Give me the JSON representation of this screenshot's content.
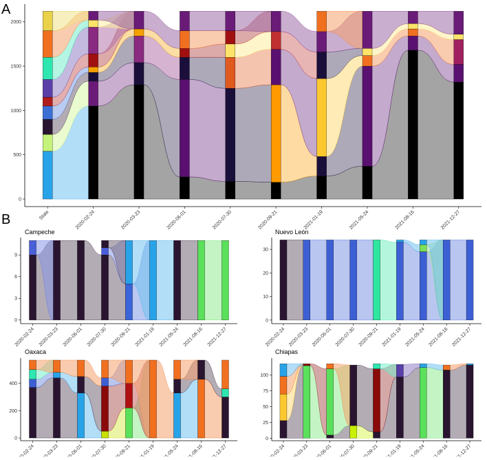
{
  "chart_data": [
    {
      "type": "alluvial",
      "panel_label": "A",
      "categories": [
        "State",
        "2020-02-24",
        "2020-03-23",
        "2020-06-01",
        "2020-07-30",
        "2020-09-21",
        "2021-01-19",
        "2021-05-24",
        "2021-08-16",
        "2021-12-27"
      ],
      "ylim": [
        -85,
        2200
      ],
      "yticks": [
        0,
        500,
        1000,
        1500,
        2000
      ],
      "stacks": [
        [
          {
            "value": 540,
            "color": "#29a3e8"
          },
          {
            "value": 190,
            "color": "#c5f27a"
          },
          {
            "value": 170,
            "color": "#2a1530"
          },
          {
            "value": 150,
            "color": "#3c6fd4"
          },
          {
            "value": 100,
            "color": "#b11b1b"
          },
          {
            "value": 200,
            "color": "#5a3fa8"
          },
          {
            "value": 250,
            "color": "#2ee6b0"
          },
          {
            "value": 300,
            "color": "#f07020"
          },
          {
            "value": 220,
            "color": "#e9d24a"
          }
        ],
        [
          {
            "value": 1050,
            "color": "#000000"
          },
          {
            "value": 280,
            "color": "#6a1b78"
          },
          {
            "value": 100,
            "color": "#1a0f3a"
          },
          {
            "value": 60,
            "color": "#f5a000"
          },
          {
            "value": 150,
            "color": "#a01010"
          },
          {
            "value": 300,
            "color": "#8a2a80"
          },
          {
            "value": 80,
            "color": "#fce36a"
          },
          {
            "value": 100,
            "color": "#6a1b78"
          }
        ],
        [
          {
            "value": 1290,
            "color": "#000000"
          },
          {
            "value": 250,
            "color": "#1a0f3a"
          },
          {
            "value": 300,
            "color": "#8a2a80"
          },
          {
            "value": 80,
            "color": "#f5a000"
          },
          {
            "value": 200,
            "color": "#6a1b78"
          }
        ],
        [
          {
            "value": 250,
            "color": "#000000"
          },
          {
            "value": 1100,
            "color": "#5a1070"
          },
          {
            "value": 250,
            "color": "#1a0f3a"
          },
          {
            "value": 100,
            "color": "#a01010"
          },
          {
            "value": 200,
            "color": "#f07020"
          },
          {
            "value": 220,
            "color": "#6a1b78"
          }
        ],
        [
          {
            "value": 200,
            "color": "#000000"
          },
          {
            "value": 1050,
            "color": "#1a0f3a"
          },
          {
            "value": 350,
            "color": "#e05a20"
          },
          {
            "value": 150,
            "color": "#fce36a"
          },
          {
            "value": 150,
            "color": "#a01010"
          },
          {
            "value": 220,
            "color": "#6a1b78"
          }
        ],
        [
          {
            "value": 190,
            "color": "#000000"
          },
          {
            "value": 1100,
            "color": "#ff9a00"
          },
          {
            "value": 400,
            "color": "#5a1070"
          },
          {
            "value": 200,
            "color": "#c03030"
          },
          {
            "value": 230,
            "color": "#6a1b78"
          }
        ],
        [
          {
            "value": 260,
            "color": "#000000"
          },
          {
            "value": 220,
            "color": "#1a0f3a"
          },
          {
            "value": 880,
            "color": "#fcc830"
          },
          {
            "value": 300,
            "color": "#1a0f3a"
          },
          {
            "value": 230,
            "color": "#6a1b78"
          },
          {
            "value": 230,
            "color": "#f07020"
          }
        ],
        [
          {
            "value": 370,
            "color": "#000000"
          },
          {
            "value": 1130,
            "color": "#5a1070"
          },
          {
            "value": 120,
            "color": "#f07020"
          },
          {
            "value": 80,
            "color": "#fce36a"
          },
          {
            "value": 420,
            "color": "#6a1b78"
          }
        ],
        [
          {
            "value": 1680,
            "color": "#000000"
          },
          {
            "value": 160,
            "color": "#5a1070"
          },
          {
            "value": 80,
            "color": "#f07020"
          },
          {
            "value": 60,
            "color": "#fce36a"
          },
          {
            "value": 140,
            "color": "#6a1b78"
          }
        ],
        [
          {
            "value": 1320,
            "color": "#000000"
          },
          {
            "value": 200,
            "color": "#5a1070"
          },
          {
            "value": 280,
            "color": "#a02060"
          },
          {
            "value": 60,
            "color": "#fce36a"
          },
          {
            "value": 260,
            "color": "#6a1b78"
          }
        ]
      ]
    },
    {
      "type": "alluvial",
      "panel_label": "B",
      "title": "Campeche",
      "categories": [
        "2020-02-24",
        "2020-03-23",
        "2020-06-01",
        "2020-07-30",
        "2020-09-21",
        "2021-01-19",
        "2021-05-24",
        "2021-08-16",
        "2021-12-27"
      ],
      "ylim": [
        -0.5,
        11.4
      ],
      "yticks": [
        0,
        3,
        6,
        9
      ],
      "stacks": [
        [
          {
            "value": 9,
            "color": "#2a1530"
          },
          {
            "value": 2,
            "color": "#4a5fd8"
          }
        ],
        [
          {
            "value": 11,
            "color": "#2a1530"
          }
        ],
        [
          {
            "value": 11,
            "color": "#2a1530"
          }
        ],
        [
          {
            "value": 9,
            "color": "#2a1530"
          },
          {
            "value": 1,
            "color": "#4a5fd8"
          },
          {
            "value": 1,
            "color": "#2a1530"
          }
        ],
        [
          {
            "value": 5,
            "color": "#3a64d8"
          },
          {
            "value": 6,
            "color": "#29a3e8"
          }
        ],
        [
          {
            "value": 11,
            "color": "#29a3e8"
          }
        ],
        [
          {
            "value": 11,
            "color": "#2a1530"
          }
        ],
        [
          {
            "value": 11,
            "color": "#5be05b"
          }
        ],
        [
          {
            "value": 11,
            "color": "#5be05b"
          }
        ]
      ]
    },
    {
      "type": "alluvial",
      "title": "Nuevo León",
      "categories": [
        "2020-02-24",
        "2020-03-23",
        "2020-06-01",
        "2020-07-30",
        "2020-09-21",
        "2021-01-19",
        "2021-05-24",
        "2021-08-16",
        "2021-12-27"
      ],
      "ylim": [
        -1.5,
        35
      ],
      "yticks": [
        0,
        10,
        20,
        30
      ],
      "stacks": [
        [
          {
            "value": 34,
            "color": "#2a1530"
          }
        ],
        [
          {
            "value": 34,
            "color": "#3c5fd4"
          }
        ],
        [
          {
            "value": 34,
            "color": "#3c5fd4"
          }
        ],
        [
          {
            "value": 34,
            "color": "#3c5fd4"
          }
        ],
        [
          {
            "value": 34,
            "color": "#2ee6a0"
          }
        ],
        [
          {
            "value": 33,
            "color": "#3c5fd4"
          },
          {
            "value": 1,
            "color": "#29a3e8"
          }
        ],
        [
          {
            "value": 29,
            "color": "#3c5fd4"
          },
          {
            "value": 3,
            "color": "#7be05b"
          },
          {
            "value": 2,
            "color": "#29a3e8"
          }
        ],
        [
          {
            "value": 34,
            "color": "#3c5fd4"
          }
        ],
        [
          {
            "value": 34,
            "color": "#3c5fd4"
          }
        ]
      ]
    },
    {
      "type": "alluvial",
      "title": "Oaxaca",
      "categories": [
        "2020-02-24",
        "2020-03-23",
        "2020-06-01",
        "2020-07-30",
        "2020-09-21",
        "2021-01-19",
        "2021-05-24",
        "2021-08-16",
        "2021-12-27"
      ],
      "ylim": [
        -20,
        585
      ],
      "yticks": [
        0,
        200,
        400
      ],
      "stacks": [
        [
          {
            "value": 370,
            "color": "#2a1530"
          },
          {
            "value": 60,
            "color": "#3c5fd4"
          },
          {
            "value": 70,
            "color": "#2ee6b0"
          },
          {
            "value": 70,
            "color": "#f07020"
          }
        ],
        [
          {
            "value": 440,
            "color": "#2a1530"
          },
          {
            "value": 40,
            "color": "#29a3e8"
          },
          {
            "value": 90,
            "color": "#f07020"
          }
        ],
        [
          {
            "value": 330,
            "color": "#29a3e8"
          },
          {
            "value": 120,
            "color": "#2a1530"
          },
          {
            "value": 120,
            "color": "#f07020"
          }
        ],
        [
          {
            "value": 50,
            "color": "#c8e000"
          },
          {
            "value": 330,
            "color": "#8a0a0a"
          },
          {
            "value": 60,
            "color": "#3c5fd4"
          },
          {
            "value": 130,
            "color": "#f07020"
          }
        ],
        [
          {
            "value": 220,
            "color": "#5be05b"
          },
          {
            "value": 180,
            "color": "#b01010"
          },
          {
            "value": 170,
            "color": "#f07020"
          }
        ],
        [
          {
            "value": 570,
            "color": "#f07020"
          }
        ],
        [
          {
            "value": 330,
            "color": "#29a3e8"
          },
          {
            "value": 100,
            "color": "#2a1530"
          },
          {
            "value": 140,
            "color": "#f07020"
          }
        ],
        [
          {
            "value": 430,
            "color": "#f07020"
          },
          {
            "value": 140,
            "color": "#2a1530"
          }
        ],
        [
          {
            "value": 300,
            "color": "#2a1530"
          },
          {
            "value": 60,
            "color": "#2ee6b0"
          },
          {
            "value": 210,
            "color": "#f07020"
          }
        ]
      ]
    },
    {
      "type": "alluvial",
      "title": "Chiapas",
      "categories": [
        "2020-02-24",
        "2020-03-23",
        "2020-06-01",
        "2020-07-30",
        "2020-09-21",
        "2021-01-19",
        "2021-05-24",
        "2021-08-16",
        "2021-12-27"
      ],
      "ylim": [
        -4,
        127
      ],
      "yticks": [
        0,
        25,
        50,
        75,
        100
      ],
      "stacks": [
        [
          {
            "value": 28,
            "color": "#2a1530"
          },
          {
            "value": 42,
            "color": "#fcc830"
          },
          {
            "value": 28,
            "color": "#f07020"
          },
          {
            "value": 20,
            "color": "#29a3e8"
          }
        ],
        [
          {
            "value": 115,
            "color": "#5be05b"
          },
          {
            "value": 3,
            "color": "#8a0a0a"
          }
        ],
        [
          {
            "value": 5,
            "color": "#2a1530"
          },
          {
            "value": 105,
            "color": "#5be05b"
          },
          {
            "value": 8,
            "color": "#f07020"
          }
        ],
        [
          {
            "value": 20,
            "color": "#c8f000"
          },
          {
            "value": 96,
            "color": "#2a1530"
          }
        ],
        [
          {
            "value": 10,
            "color": "#2a1530"
          },
          {
            "value": 100,
            "color": "#8a0a0a"
          },
          {
            "value": 8,
            "color": "#2ee6b0"
          }
        ],
        [
          {
            "value": 97,
            "color": "#2a1530"
          },
          {
            "value": 20,
            "color": "#5a3fa8"
          }
        ],
        [
          {
            "value": 112,
            "color": "#5be05b"
          },
          {
            "value": 6,
            "color": "#29a3e8"
          }
        ],
        [
          {
            "value": 108,
            "color": "#2a1530"
          },
          {
            "value": 8,
            "color": "#f07020"
          }
        ],
        [
          {
            "value": 116,
            "color": "#2a1530"
          },
          {
            "value": 2,
            "color": "#29a3e8"
          }
        ]
      ]
    }
  ]
}
